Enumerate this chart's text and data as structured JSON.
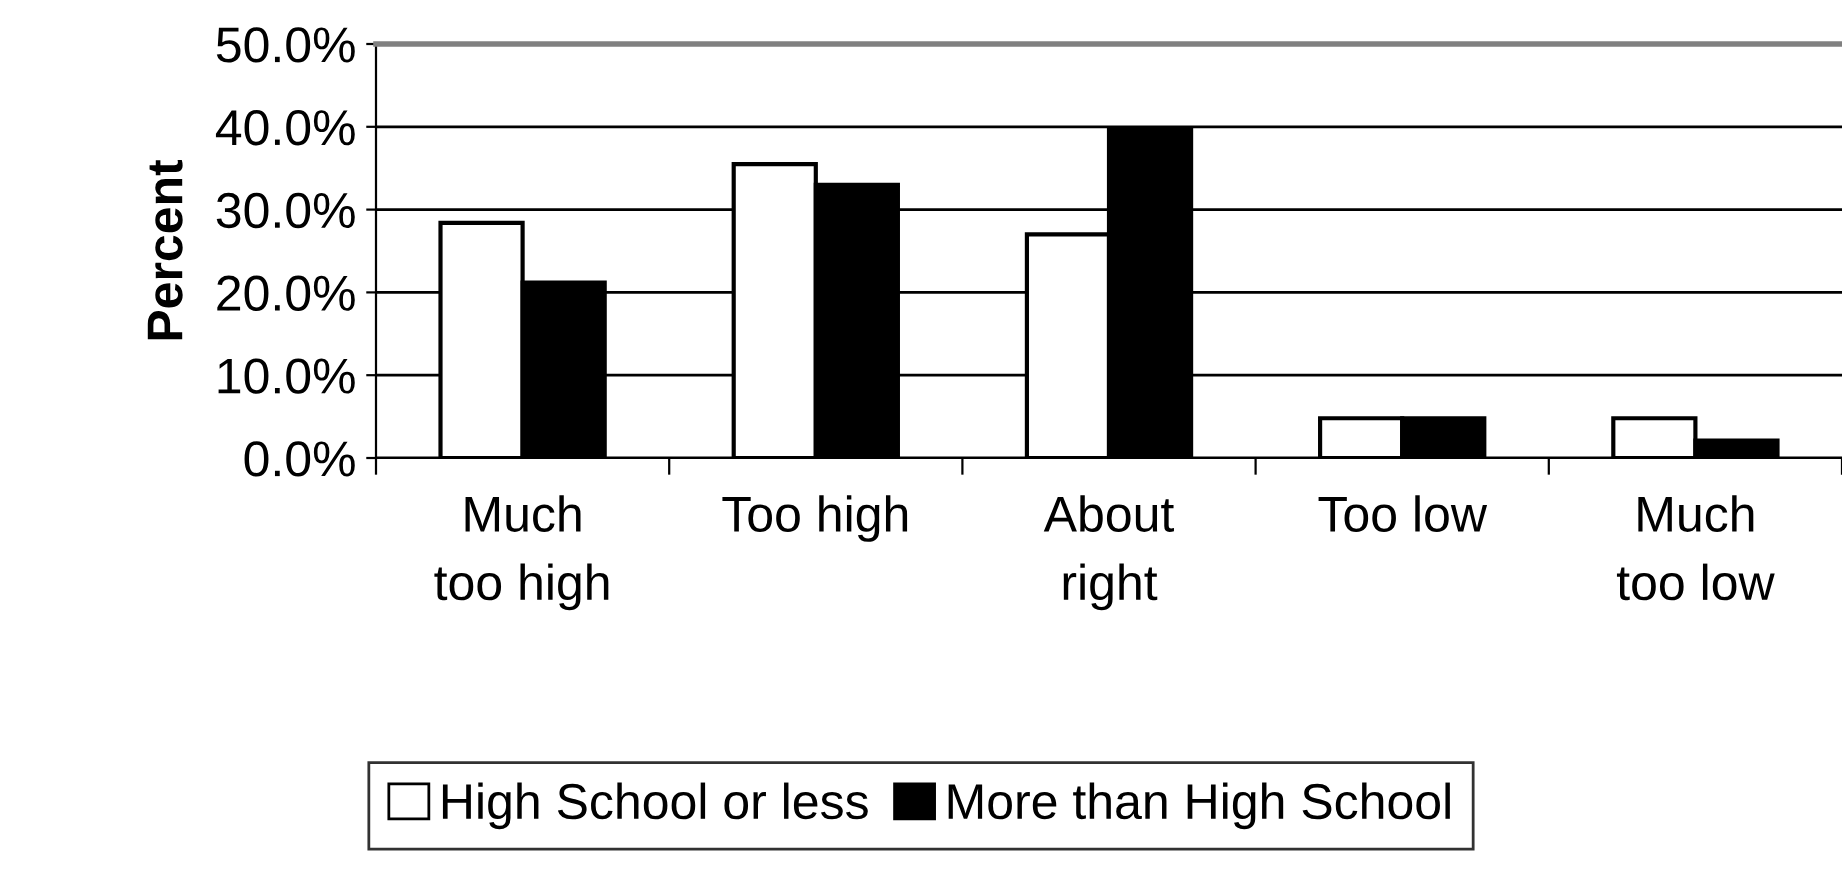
{
  "chart_data": {
    "type": "bar",
    "ylabel": "Percent",
    "categories": [
      "Much\ntoo high",
      "Too high",
      "About\nright",
      "Too low",
      "Much\ntoo low"
    ],
    "series": [
      {
        "name": "High School or less",
        "color": "#ffffff",
        "values": [
          28.4,
          35.5,
          27.0,
          4.8,
          4.8
        ]
      },
      {
        "name": "More than High School",
        "color": "#000000",
        "values": [
          21.2,
          33.0,
          39.6,
          4.8,
          2.1
        ]
      }
    ],
    "ylim": [
      0,
      50
    ],
    "yticks": [
      {
        "value": 0,
        "label": "0.0%"
      },
      {
        "value": 10,
        "label": "10.0%"
      },
      {
        "value": 20,
        "label": "20.0%"
      },
      {
        "value": 30,
        "label": "30.0%"
      },
      {
        "value": 40,
        "label": "40.0%"
      },
      {
        "value": 50,
        "label": "50.0%"
      }
    ],
    "grid": "y",
    "legend": "bottom"
  }
}
